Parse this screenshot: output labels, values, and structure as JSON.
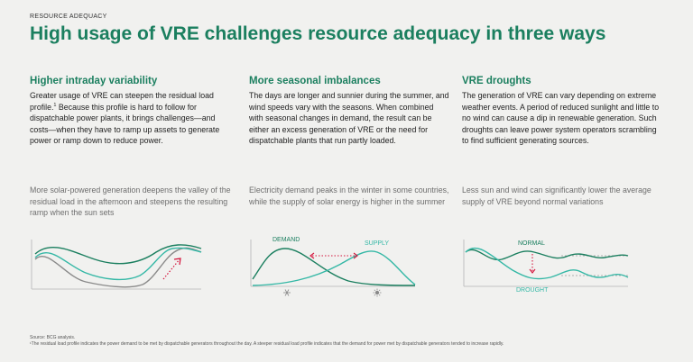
{
  "header": {
    "eyebrow": "RESOURCE ADEQUACY",
    "title": "High usage of VRE challenges resource adequacy in three ways"
  },
  "columns": [
    {
      "title": "Higher intraday variability",
      "body_main": "Greater usage of VRE can steepen the residual load profile.",
      "body_sup": "1",
      "body_rest": " Because this profile is hard to follow for dispatchable power plants, it brings challenges—and costs—when they have to ramp up assets to generate power or ramp down to reduce power.",
      "caption": "More solar-powered generation deepens the valley of the residual load in the afternoon and steepens the resulting ramp when the sun sets"
    },
    {
      "title": "More seasonal imbalances",
      "body": "The days are longer and sunnier during the summer, and wind speeds vary with the seasons. When combined with seasonal changes in demand, the result can be either an excess generation of VRE or the need for dispatchable plants that run partly loaded.",
      "caption": "Electricity demand peaks in the winter in some countries, while the supply of solar energy is higher in the summer",
      "label_demand": "DEMAND",
      "label_supply": "SUPPLY"
    },
    {
      "title": "VRE droughts",
      "body": "The generation of VRE can vary depending on extreme weather events. A period of reduced sunlight and little to no wind can cause a dip in renewable generation. Such droughts can leave power system operators scrambling to find sufficient generating sources.",
      "caption": "Less sun and wind can significantly lower the average supply of VRE beyond normal variations",
      "label_normal": "NORMAL",
      "label_drought": "DROUGHT"
    }
  ],
  "footer": {
    "source": "Source: BCG analysis.",
    "note": "¹The residual load profile indicates the power demand to be met by dispatchable generators throughout the day. A steeper residual load profile indicates that the demand for power met by dispatchable generators tended to increase rapidly."
  },
  "colors": {
    "green_dark": "#1b7f5f",
    "teal": "#35b8a6",
    "gray_curve": "#8a8a8a",
    "accent_red": "#d4143c"
  },
  "icons": [
    "snowflake-icon",
    "sun-icon"
  ]
}
